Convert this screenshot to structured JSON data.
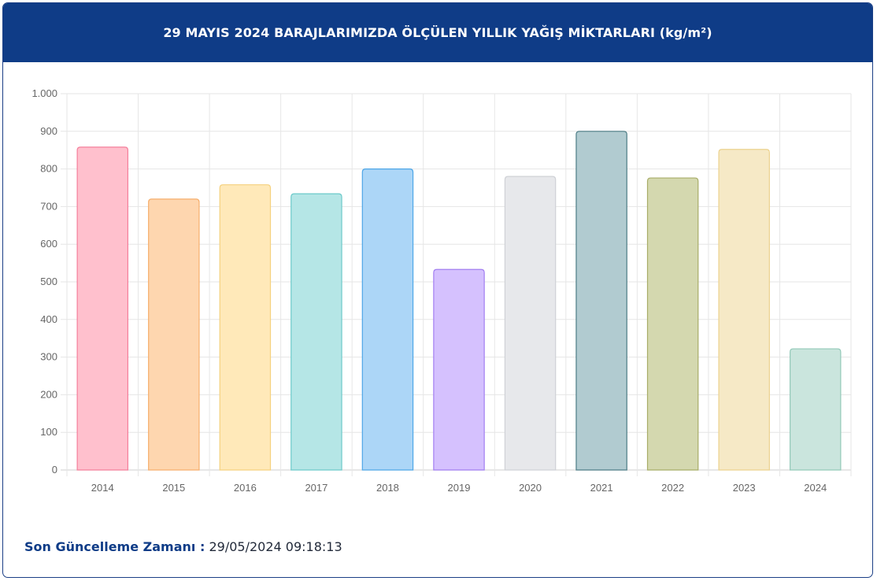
{
  "header": {
    "title": "29 MAYIS 2024 BARAJLARIMIZDA ÖLÇÜLEN YILLIK YAĞIŞ MİKTARLARI (kg/m²)"
  },
  "footer": {
    "label": "Son Güncelleme Zamanı :",
    "value": "29/05/2024 09:18:13"
  },
  "chart_data": {
    "type": "bar",
    "categories": [
      "2014",
      "2015",
      "2016",
      "2017",
      "2018",
      "2019",
      "2020",
      "2021",
      "2022",
      "2023",
      "2024"
    ],
    "values": [
      858,
      720,
      758,
      734,
      800,
      533,
      780,
      900,
      776,
      852,
      322
    ],
    "ylim": [
      0,
      1000
    ],
    "yticks": [
      0,
      100,
      200,
      300,
      400,
      500,
      600,
      700,
      800,
      900,
      1000
    ],
    "ytick_labels": [
      "0",
      "100",
      "200",
      "300",
      "400",
      "500",
      "600",
      "700",
      "800",
      "900",
      "1.000"
    ],
    "grid": true,
    "legend": "none",
    "colors": {
      "fill": [
        "#ffc0cd",
        "#fed6af",
        "#ffe9b9",
        "#b5e6e6",
        "#acd6f7",
        "#d5c1fe",
        "#e7e8eb",
        "#b1cbd0",
        "#d4d8af",
        "#f6e9c6",
        "#cae5dd"
      ],
      "stroke": [
        "#f47f9b",
        "#f6ae6c",
        "#f5d17e",
        "#6dcaca",
        "#4ea6e7",
        "#a17ef0",
        "#cfd1d6",
        "#4d7d86",
        "#a8ad68",
        "#ecd28e",
        "#93c9b9"
      ]
    }
  }
}
